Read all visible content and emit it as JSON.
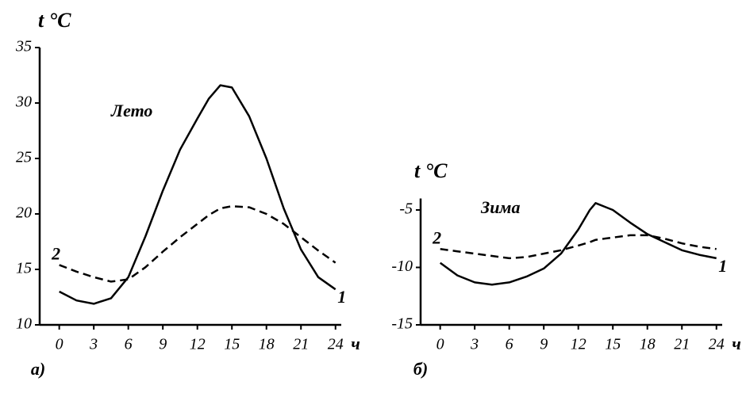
{
  "chart_data": [
    {
      "type": "line",
      "ylabel": "t °C",
      "xlabel": "ч",
      "annotation": "Лето",
      "panel": "а)",
      "x": [
        0,
        1.5,
        3,
        4.5,
        6,
        7.5,
        9,
        10.5,
        12,
        13,
        14,
        15,
        16.5,
        18,
        19.5,
        21,
        22.5,
        24
      ],
      "series": [
        {
          "name": "1",
          "color": "#000000",
          "style": "solid",
          "values": [
            13.0,
            12.2,
            11.9,
            12.4,
            14.3,
            18.0,
            22.1,
            25.8,
            28.6,
            30.4,
            31.6,
            31.4,
            28.8,
            25.0,
            20.5,
            16.8,
            14.3,
            13.2
          ]
        },
        {
          "name": "2",
          "color": "#000000",
          "style": "dashed",
          "values": [
            15.4,
            14.8,
            14.3,
            13.9,
            14.1,
            15.2,
            16.6,
            17.9,
            19.1,
            19.9,
            20.5,
            20.7,
            20.6,
            20.0,
            19.1,
            17.9,
            16.7,
            15.6
          ]
        }
      ],
      "xlim": [
        -1.7,
        24.5
      ],
      "ylim": [
        10,
        35
      ],
      "xticks": [
        0,
        3,
        6,
        9,
        12,
        15,
        18,
        21,
        24
      ],
      "yticks": [
        10,
        15,
        20,
        25,
        30,
        35
      ]
    },
    {
      "type": "line",
      "ylabel": "t °C",
      "xlabel": "ч",
      "annotation": "Зима",
      "panel": "б)",
      "x": [
        0,
        1.5,
        3,
        4.5,
        6,
        7.5,
        9,
        10.5,
        12,
        13,
        13.5,
        15,
        16.5,
        18,
        19.5,
        21,
        22.5,
        24
      ],
      "series": [
        {
          "name": "1",
          "color": "#000000",
          "style": "solid",
          "values": [
            -9.6,
            -10.7,
            -11.3,
            -11.5,
            -11.3,
            -10.8,
            -10.1,
            -8.8,
            -6.7,
            -5.0,
            -4.4,
            -5.0,
            -6.1,
            -7.1,
            -7.8,
            -8.5,
            -8.9,
            -9.2
          ]
        },
        {
          "name": "2",
          "color": "#000000",
          "style": "dashed",
          "values": [
            -8.4,
            -8.6,
            -8.8,
            -9.0,
            -9.2,
            -9.1,
            -8.8,
            -8.5,
            -8.1,
            -7.8,
            -7.6,
            -7.4,
            -7.2,
            -7.2,
            -7.5,
            -7.9,
            -8.2,
            -8.4
          ]
        }
      ],
      "xlim": [
        -1.7,
        24.5
      ],
      "ylim": [
        -15,
        -4
      ],
      "xticks": [
        0,
        3,
        6,
        9,
        12,
        15,
        18,
        21,
        24
      ],
      "yticks": [
        -15,
        -10,
        -5
      ]
    }
  ]
}
